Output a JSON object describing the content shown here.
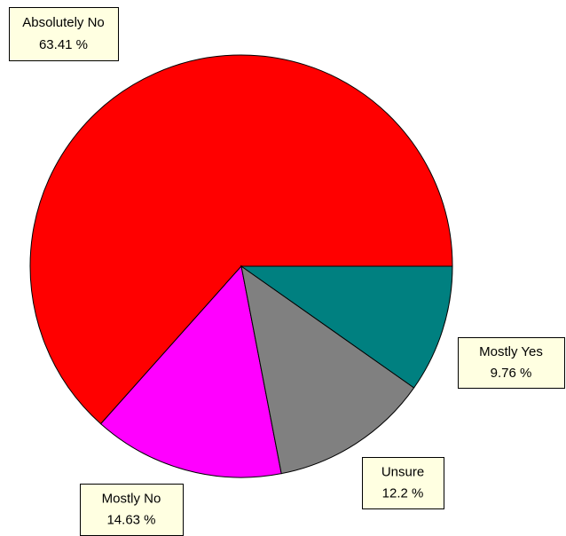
{
  "chart_data": {
    "type": "pie",
    "categories": [
      "Absolutely No",
      "Mostly No",
      "Unsure",
      "Mostly Yes"
    ],
    "values": [
      63.41,
      14.63,
      12.2,
      9.76
    ],
    "value_labels": [
      "63.41 %",
      "14.63 %",
      "12.2 %",
      "9.76 %"
    ],
    "colors": [
      "#ff0000",
      "#ff00ff",
      "#808080",
      "#008080"
    ]
  }
}
